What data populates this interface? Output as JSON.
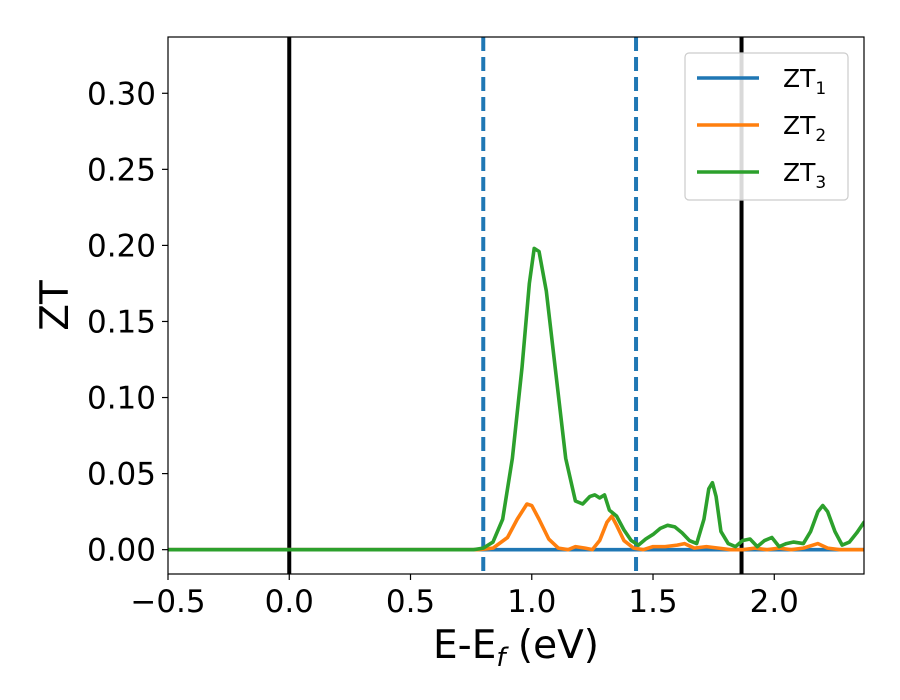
{
  "chart_data": {
    "type": "line",
    "xlabel": "E-E",
    "xlabel_sub": "f",
    "xlabel_unit": " (eV)",
    "ylabel": "ZT",
    "xlim": [
      -0.5,
      2.37
    ],
    "ylim": [
      -0.016,
      0.337
    ],
    "xticks": [
      -0.5,
      0.0,
      0.5,
      1.0,
      1.5,
      2.0
    ],
    "xtick_labels": [
      "−0.5",
      "0.0",
      "0.5",
      "1.0",
      "1.5",
      "2.0"
    ],
    "yticks": [
      0.0,
      0.05,
      0.1,
      0.15,
      0.2,
      0.25,
      0.3
    ],
    "ytick_labels": [
      "0.00",
      "0.05",
      "0.10",
      "0.15",
      "0.20",
      "0.25",
      "0.30"
    ],
    "grid": false,
    "legend_position": "top-right",
    "vlines": [
      {
        "x": 0.0,
        "style": "solid",
        "color": "#000000"
      },
      {
        "x": 1.865,
        "style": "solid",
        "color": "#000000"
      },
      {
        "x": 0.8,
        "style": "dashed",
        "color": "#1f77b4"
      },
      {
        "x": 1.43,
        "style": "dashed",
        "color": "#1f77b4"
      }
    ],
    "series": [
      {
        "name": "ZT",
        "sub": "1",
        "color": "#1f77b4",
        "points": [
          [
            -0.5,
            0.0
          ],
          [
            2.37,
            0.0
          ]
        ]
      },
      {
        "name": "ZT",
        "sub": "2",
        "color": "#ff7f0e",
        "points": [
          [
            -0.5,
            0.0
          ],
          [
            0.78,
            0.0
          ],
          [
            0.84,
            0.001
          ],
          [
            0.9,
            0.008
          ],
          [
            0.94,
            0.02
          ],
          [
            0.98,
            0.03
          ],
          [
            1.0,
            0.029
          ],
          [
            1.03,
            0.02
          ],
          [
            1.07,
            0.007
          ],
          [
            1.11,
            0.001
          ],
          [
            1.15,
            0.0
          ],
          [
            1.18,
            0.002
          ],
          [
            1.22,
            0.001
          ],
          [
            1.25,
            0.0
          ],
          [
            1.28,
            0.006
          ],
          [
            1.31,
            0.018
          ],
          [
            1.33,
            0.022
          ],
          [
            1.35,
            0.016
          ],
          [
            1.38,
            0.006
          ],
          [
            1.42,
            0.001
          ],
          [
            1.46,
            0.0
          ],
          [
            1.5,
            0.002
          ],
          [
            1.55,
            0.002
          ],
          [
            1.6,
            0.003
          ],
          [
            1.63,
            0.004
          ],
          [
            1.67,
            0.001
          ],
          [
            1.72,
            0.002
          ],
          [
            1.77,
            0.001
          ],
          [
            1.82,
            0.0
          ],
          [
            1.87,
            0.0
          ],
          [
            1.92,
            0.001
          ],
          [
            1.97,
            0.0
          ],
          [
            2.02,
            0.001
          ],
          [
            2.07,
            0.0
          ],
          [
            2.12,
            0.001
          ],
          [
            2.18,
            0.004
          ],
          [
            2.22,
            0.001
          ],
          [
            2.27,
            0.0
          ],
          [
            2.37,
            0.0
          ]
        ]
      },
      {
        "name": "ZT",
        "sub": "3",
        "color": "#2ca02c",
        "points": [
          [
            -0.5,
            0.0
          ],
          [
            0.76,
            0.0
          ],
          [
            0.8,
            0.001
          ],
          [
            0.84,
            0.005
          ],
          [
            0.88,
            0.02
          ],
          [
            0.92,
            0.06
          ],
          [
            0.96,
            0.12
          ],
          [
            0.99,
            0.175
          ],
          [
            1.01,
            0.198
          ],
          [
            1.03,
            0.196
          ],
          [
            1.06,
            0.17
          ],
          [
            1.1,
            0.115
          ],
          [
            1.14,
            0.06
          ],
          [
            1.18,
            0.032
          ],
          [
            1.21,
            0.03
          ],
          [
            1.24,
            0.035
          ],
          [
            1.26,
            0.036
          ],
          [
            1.28,
            0.034
          ],
          [
            1.3,
            0.036
          ],
          [
            1.32,
            0.026
          ],
          [
            1.35,
            0.022
          ],
          [
            1.38,
            0.013
          ],
          [
            1.41,
            0.006
          ],
          [
            1.44,
            0.003
          ],
          [
            1.47,
            0.007
          ],
          [
            1.5,
            0.01
          ],
          [
            1.53,
            0.014
          ],
          [
            1.56,
            0.016
          ],
          [
            1.59,
            0.015
          ],
          [
            1.62,
            0.011
          ],
          [
            1.65,
            0.006
          ],
          [
            1.68,
            0.004
          ],
          [
            1.71,
            0.02
          ],
          [
            1.73,
            0.04
          ],
          [
            1.745,
            0.044
          ],
          [
            1.76,
            0.035
          ],
          [
            1.78,
            0.012
          ],
          [
            1.81,
            0.004
          ],
          [
            1.84,
            0.002
          ],
          [
            1.87,
            0.006
          ],
          [
            1.9,
            0.007
          ],
          [
            1.93,
            0.002
          ],
          [
            1.96,
            0.006
          ],
          [
            1.99,
            0.008
          ],
          [
            2.02,
            0.002
          ],
          [
            2.05,
            0.004
          ],
          [
            2.08,
            0.005
          ],
          [
            2.12,
            0.004
          ],
          [
            2.15,
            0.012
          ],
          [
            2.18,
            0.025
          ],
          [
            2.2,
            0.029
          ],
          [
            2.22,
            0.025
          ],
          [
            2.25,
            0.012
          ],
          [
            2.28,
            0.003
          ],
          [
            2.31,
            0.005
          ],
          [
            2.34,
            0.011
          ],
          [
            2.37,
            0.018
          ]
        ]
      }
    ]
  }
}
